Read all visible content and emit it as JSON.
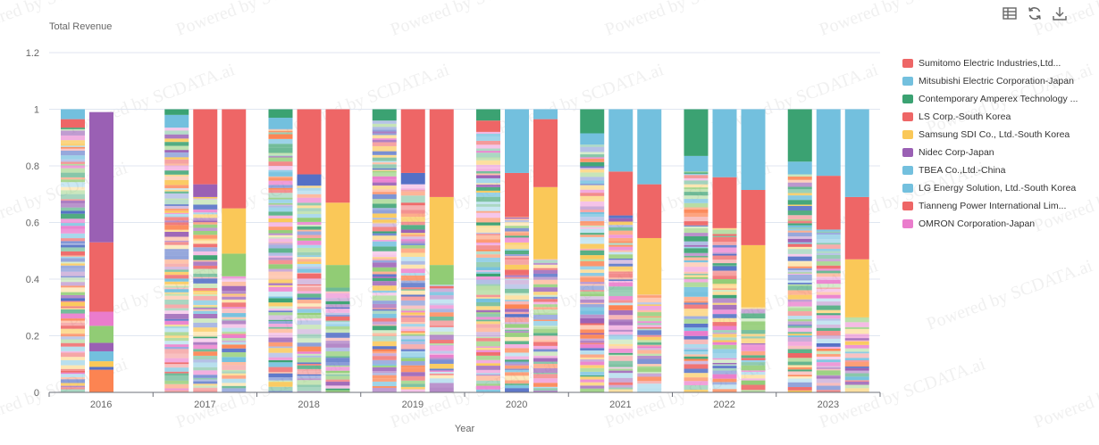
{
  "toolbar": {
    "icons": [
      "data-view-icon",
      "refresh-icon",
      "download-icon"
    ],
    "icon_color": "#666666"
  },
  "watermark": {
    "text": "Powered by SCDATA.ai"
  },
  "legend": {
    "items": [
      {
        "label": "Sumitomo Electric Industries,Ltd...",
        "color": "#ee6666"
      },
      {
        "label": "Mitsubishi Electric Corporation-Japan",
        "color": "#73c0de"
      },
      {
        "label": "Contemporary Amperex Technology ...",
        "color": "#3ba272"
      },
      {
        "label": "LS Corp.-South Korea",
        "color": "#ee6666"
      },
      {
        "label": "Samsung SDI Co., Ltd.-South Korea",
        "color": "#fac858"
      },
      {
        "label": "Nidec Corp-Japan",
        "color": "#9a60b4"
      },
      {
        "label": "TBEA Co.,Ltd.-China",
        "color": "#73c0de"
      },
      {
        "label": "LG Energy Solution, Ltd.-South Korea",
        "color": "#73c0de"
      },
      {
        "label": "Tianneng Power International Lim...",
        "color": "#ee6666"
      },
      {
        "label": "OMRON Corporation-Japan",
        "color": "#ea7ccc"
      }
    ]
  },
  "chart_data": {
    "type": "bar",
    "stacked": true,
    "normalized": true,
    "title": "Total Revenue",
    "xlabel": "Year",
    "ylabel": "",
    "ylim": [
      0,
      1.2
    ],
    "yticks": [
      "0",
      "0.2",
      "0.4",
      "0.6",
      "0.8",
      "1",
      "1.2"
    ],
    "categories": [
      "2016",
      "2017",
      "2018",
      "2019",
      "2020",
      "2021",
      "2022",
      "2023"
    ],
    "grid": true,
    "legend_position": "right",
    "palette": [
      "#5470c6",
      "#91cc75",
      "#fac858",
      "#ee6666",
      "#73c0de",
      "#3ba272",
      "#fc8452",
      "#9a60b4",
      "#ea7ccc"
    ],
    "bar_groups": [
      {
        "year": "2016",
        "bars": [
          {
            "segments": [
              {
                "value": 0.935,
                "label": "many small companies",
                "many": true
              },
              {
                "value": 0.03,
                "color": "#ee6666"
              },
              {
                "value": 0.035,
                "color": "#73c0de"
              }
            ]
          },
          {
            "segments": [
              {
                "value": 0.08,
                "color": "#fc8452"
              },
              {
                "value": 0.01,
                "color": "#5470c6"
              },
              {
                "value": 0.02,
                "color": "#fac858"
              },
              {
                "value": 0.035,
                "color": "#73c0de"
              },
              {
                "value": 0.03,
                "color": "#9a60b4"
              },
              {
                "value": 0.06,
                "color": "#91cc75"
              },
              {
                "value": 0.05,
                "color": "#ea7ccc"
              },
              {
                "value": 0.245,
                "color": "#ee6666"
              },
              {
                "value": 0.46,
                "color": "#9a60b4"
              }
            ]
          }
        ]
      },
      {
        "year": "2017",
        "bars": [
          {
            "segments": [
              {
                "value": 0.935,
                "many": true
              },
              {
                "value": 0.045,
                "color": "#73c0de"
              },
              {
                "value": 0.02,
                "color": "#3ba272"
              }
            ]
          },
          {
            "segments": [
              {
                "value": 0.69,
                "many": true
              },
              {
                "value": 0.045,
                "color": "#9a60b4"
              },
              {
                "value": 0.265,
                "color": "#ee6666"
              }
            ]
          },
          {
            "segments": [
              {
                "value": 0.41,
                "many": true
              },
              {
                "value": 0.08,
                "color": "#91cc75"
              },
              {
                "value": 0.16,
                "color": "#fac858"
              },
              {
                "value": 0.35,
                "color": "#ee6666"
              }
            ]
          }
        ]
      },
      {
        "year": "2018",
        "bars": [
          {
            "segments": [
              {
                "value": 0.93,
                "many": true
              },
              {
                "value": 0.04,
                "color": "#73c0de"
              },
              {
                "value": 0.03,
                "color": "#3ba272"
              }
            ]
          },
          {
            "segments": [
              {
                "value": 0.73,
                "many": true
              },
              {
                "value": 0.04,
                "color": "#5470c6"
              },
              {
                "value": 0.23,
                "color": "#ee6666"
              }
            ]
          },
          {
            "segments": [
              {
                "value": 0.37,
                "many": true
              },
              {
                "value": 0.08,
                "color": "#91cc75"
              },
              {
                "value": 0.22,
                "color": "#fac858"
              },
              {
                "value": 0.33,
                "color": "#ee6666"
              }
            ]
          }
        ]
      },
      {
        "year": "2019",
        "bars": [
          {
            "segments": [
              {
                "value": 0.96,
                "many": true
              },
              {
                "value": 0.04,
                "color": "#3ba272"
              }
            ]
          },
          {
            "segments": [
              {
                "value": 0.735,
                "many": true
              },
              {
                "value": 0.04,
                "color": "#5470c6"
              },
              {
                "value": 0.225,
                "color": "#ee6666"
              }
            ]
          },
          {
            "segments": [
              {
                "value": 0.38,
                "many": true
              },
              {
                "value": 0.07,
                "color": "#91cc75"
              },
              {
                "value": 0.24,
                "color": "#fac858"
              },
              {
                "value": 0.31,
                "color": "#ee6666"
              }
            ]
          }
        ]
      },
      {
        "year": "2020",
        "bars": [
          {
            "segments": [
              {
                "value": 0.92,
                "many": true
              },
              {
                "value": 0.04,
                "color": "#ee6666"
              },
              {
                "value": 0.04,
                "color": "#3ba272"
              }
            ]
          },
          {
            "segments": [
              {
                "value": 0.62,
                "many": true
              },
              {
                "value": 0.155,
                "color": "#ee6666"
              },
              {
                "value": 0.225,
                "color": "#73c0de"
              }
            ]
          },
          {
            "segments": [
              {
                "value": 0.47,
                "many": true
              },
              {
                "value": 0.255,
                "color": "#fac858"
              },
              {
                "value": 0.24,
                "color": "#ee6666"
              },
              {
                "value": 0.035,
                "color": "#73c0de"
              }
            ]
          }
        ]
      },
      {
        "year": "2021",
        "bars": [
          {
            "segments": [
              {
                "value": 0.875,
                "many": true
              },
              {
                "value": 0.04,
                "color": "#73c0de"
              },
              {
                "value": 0.085,
                "color": "#3ba272"
              }
            ]
          },
          {
            "segments": [
              {
                "value": 0.625,
                "many": true
              },
              {
                "value": 0.155,
                "color": "#ee6666"
              },
              {
                "value": 0.22,
                "color": "#73c0de"
              }
            ]
          },
          {
            "segments": [
              {
                "value": 0.345,
                "many": true
              },
              {
                "value": 0.2,
                "color": "#fac858"
              },
              {
                "value": 0.19,
                "color": "#ee6666"
              },
              {
                "value": 0.265,
                "color": "#73c0de"
              }
            ]
          }
        ]
      },
      {
        "year": "2022",
        "bars": [
          {
            "segments": [
              {
                "value": 0.78,
                "many": true
              },
              {
                "value": 0.055,
                "color": "#73c0de"
              },
              {
                "value": 0.165,
                "color": "#3ba272"
              }
            ]
          },
          {
            "segments": [
              {
                "value": 0.58,
                "many": true
              },
              {
                "value": 0.18,
                "color": "#ee6666"
              },
              {
                "value": 0.24,
                "color": "#73c0de"
              }
            ]
          },
          {
            "segments": [
              {
                "value": 0.3,
                "many": true
              },
              {
                "value": 0.22,
                "color": "#fac858"
              },
              {
                "value": 0.195,
                "color": "#ee6666"
              },
              {
                "value": 0.285,
                "color": "#73c0de"
              }
            ]
          }
        ]
      },
      {
        "year": "2023",
        "bars": [
          {
            "segments": [
              {
                "value": 0.77,
                "many": true
              },
              {
                "value": 0.045,
                "color": "#73c0de"
              },
              {
                "value": 0.185,
                "color": "#3ba272"
              }
            ]
          },
          {
            "segments": [
              {
                "value": 0.575,
                "many": true
              },
              {
                "value": 0.19,
                "color": "#ee6666"
              },
              {
                "value": 0.235,
                "color": "#73c0de"
              }
            ]
          },
          {
            "segments": [
              {
                "value": 0.265,
                "many": true
              },
              {
                "value": 0.205,
                "color": "#fac858"
              },
              {
                "value": 0.22,
                "color": "#ee6666"
              },
              {
                "value": 0.31,
                "color": "#73c0de"
              }
            ]
          }
        ]
      }
    ]
  }
}
